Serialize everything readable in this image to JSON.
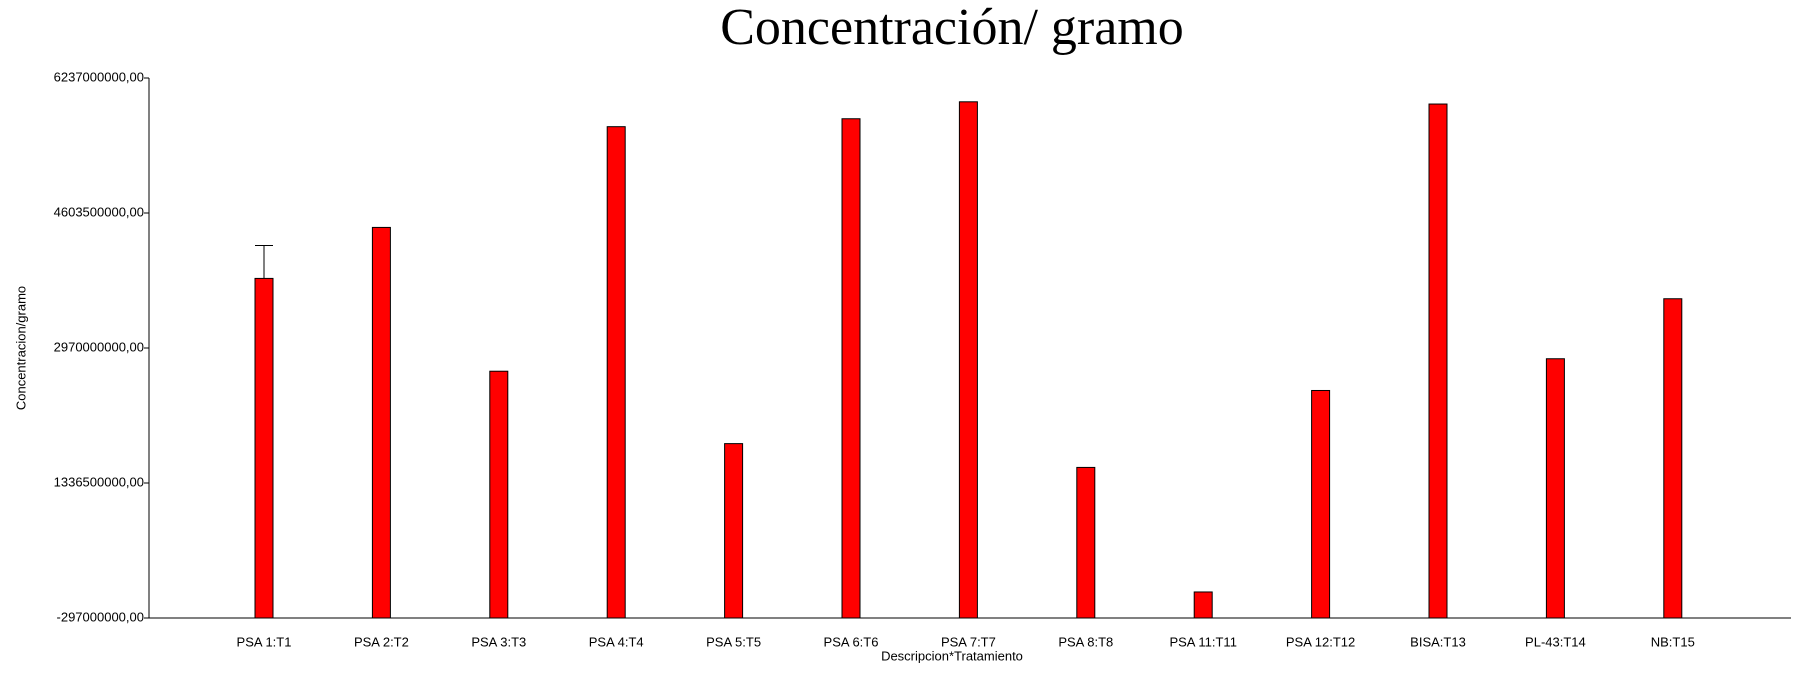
{
  "chart_data": {
    "type": "bar",
    "title": "Concentración/ gramo",
    "x_label": "Descripcion*Tratamiento",
    "y_label": "Concentracion/gramo",
    "categories": [
      "PSA 1:T1",
      "PSA 2:T2",
      "PSA 3:T3",
      "PSA 4:T4",
      "PSA 5:T5",
      "PSA 6:T6",
      "PSA 7:T7",
      "PSA 8:T8",
      "PSA 11:T11",
      "PSA 12:T12",
      "BISA:T13",
      "PL-43:T14",
      "NB:T15"
    ],
    "values": [
      3812000000,
      4429000000,
      2689000000,
      5648000000,
      1813000000,
      5744000000,
      5949000000,
      1525000000,
      18000000,
      2456000000,
      5922000000,
      2840000000,
      3566000000
    ],
    "errors": [
      398000000,
      null,
      null,
      null,
      null,
      null,
      null,
      null,
      null,
      null,
      null,
      null,
      null
    ],
    "color": "#ff0000",
    "ylim": [
      -297000000,
      6237000000
    ],
    "yticks": [
      {
        "value": -297000000,
        "label": "-297000000,00"
      },
      {
        "value": 1336500000,
        "label": "1336500000,00"
      },
      {
        "value": 2970000000,
        "label": "2970000000,00"
      },
      {
        "value": 4603500000,
        "label": "4603500000,00"
      },
      {
        "value": 6237000000,
        "label": "6237000000,00"
      }
    ],
    "grid": false
  }
}
